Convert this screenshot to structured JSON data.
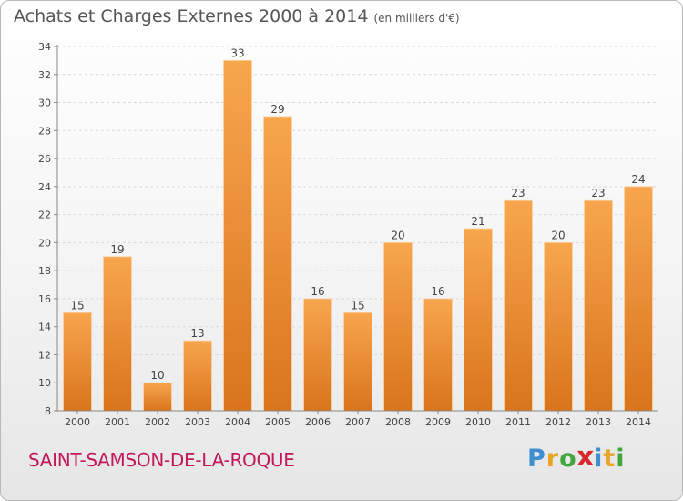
{
  "header": {
    "title": "Achats et Charges Externes 2000 à 2014",
    "unit": "(en milliers d'€)"
  },
  "footer": {
    "commune": "SAINT-SAMSON-DE-LA-ROQUE",
    "logo_letters": [
      {
        "char": "P",
        "color": "#3f8fd0"
      },
      {
        "char": "r",
        "color": "#e8a423"
      },
      {
        "char": "o",
        "color": "#43a53c"
      },
      {
        "char": "x",
        "color": "#d7282f"
      },
      {
        "char": "i",
        "color": "#3f8fd0"
      },
      {
        "char": "t",
        "color": "#e8a423"
      },
      {
        "char": "i",
        "color": "#43a53c"
      }
    ]
  },
  "chart_data": {
    "type": "bar",
    "categories": [
      "2000",
      "2001",
      "2002",
      "2003",
      "2004",
      "2005",
      "2006",
      "2007",
      "2008",
      "2009",
      "2010",
      "2011",
      "2012",
      "2013",
      "2014"
    ],
    "values": [
      15,
      19,
      10,
      13,
      33,
      29,
      16,
      15,
      20,
      16,
      21,
      23,
      20,
      23,
      24
    ],
    "ylim": [
      8,
      34
    ],
    "yticks": [
      8,
      10,
      12,
      14,
      16,
      18,
      20,
      22,
      24,
      26,
      28,
      30,
      32,
      34
    ],
    "bar_color_top": "#f7a64e",
    "bar_color_bottom": "#d9741c",
    "grid": true
  }
}
